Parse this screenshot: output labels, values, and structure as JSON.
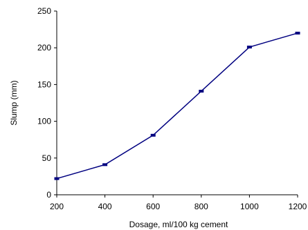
{
  "chart_data": {
    "type": "line",
    "title": "",
    "xlabel": "Dosage, ml/100 kg cement",
    "ylabel": "Slump  (mm)",
    "xlim": [
      200,
      1200
    ],
    "ylim": [
      0,
      250
    ],
    "xticks": [
      200,
      400,
      600,
      800,
      1000,
      1200
    ],
    "yticks": [
      0,
      50,
      100,
      150,
      200,
      250
    ],
    "grid": false,
    "legend": "none",
    "series": [
      {
        "x": [
          200,
          400,
          600,
          800,
          1000,
          1200
        ],
        "y": [
          22,
          41,
          81,
          141,
          201,
          220
        ],
        "color": "#000080"
      }
    ]
  }
}
